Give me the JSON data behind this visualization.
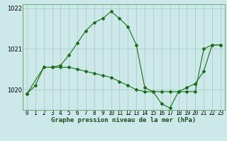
{
  "title": "Graphe pression niveau de la mer (hPa)",
  "background_color": "#cce8e8",
  "grid_color": "#aacccc",
  "line_color": "#1a6e1a",
  "xlim": [
    -0.5,
    23.5
  ],
  "ylim": [
    1019.5,
    1022.1
  ],
  "yticks": [
    1020,
    1021,
    1022
  ],
  "xticks": [
    0,
    1,
    2,
    3,
    4,
    5,
    6,
    7,
    8,
    9,
    10,
    11,
    12,
    13,
    14,
    15,
    16,
    17,
    18,
    19,
    20,
    21,
    22,
    23
  ],
  "series1_x": [
    0,
    1,
    2,
    3,
    4,
    5,
    6,
    7,
    8,
    9,
    10,
    11,
    12,
    13,
    14,
    15,
    16,
    17,
    18,
    19,
    20,
    21,
    22,
    23
  ],
  "series1_y": [
    1019.9,
    1020.1,
    1020.55,
    1020.55,
    1020.6,
    1020.85,
    1021.15,
    1021.45,
    1021.65,
    1021.75,
    1021.92,
    1021.75,
    1021.55,
    1021.1,
    1020.05,
    1019.95,
    1019.65,
    1019.55,
    1019.95,
    1019.95,
    1019.95,
    1021.0,
    1021.1,
    1021.1
  ],
  "series2_x": [
    0,
    2,
    3,
    4,
    5,
    6,
    7,
    8,
    9,
    10,
    11,
    12,
    13,
    14,
    15,
    16,
    17,
    18,
    19,
    20,
    21,
    22,
    23
  ],
  "series2_y": [
    1019.9,
    1020.55,
    1020.55,
    1020.55,
    1020.55,
    1020.5,
    1020.45,
    1020.4,
    1020.35,
    1020.3,
    1020.2,
    1020.1,
    1020.0,
    1019.95,
    1019.95,
    1019.95,
    1019.95,
    1019.95,
    1020.05,
    1020.15,
    1020.45,
    1021.1,
    1021.1
  ],
  "ylabel_fontsize": 6.0,
  "xlabel_fontsize": 5.5,
  "title_fontsize": 6.5,
  "figsize": [
    3.2,
    2.0
  ],
  "dpi": 100
}
